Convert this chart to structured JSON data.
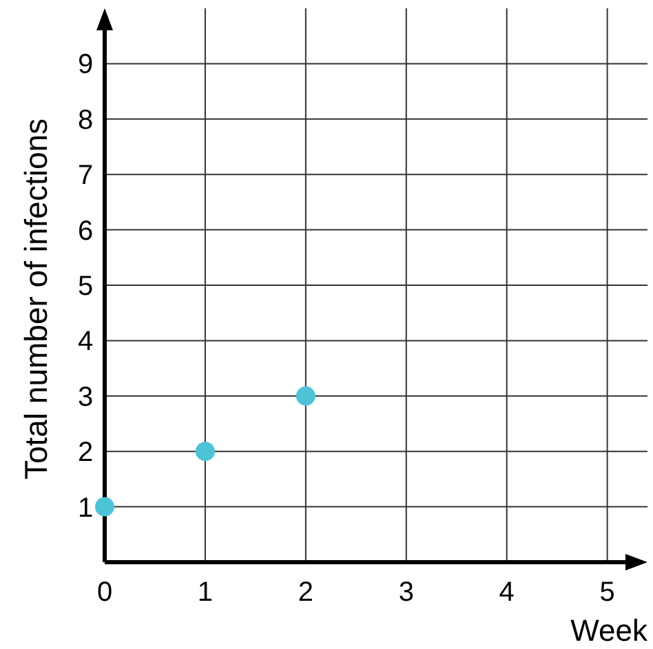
{
  "chart_data": {
    "type": "scatter",
    "xlabel": "Week",
    "ylabel": "Total number of infections",
    "x": [
      0,
      1,
      2
    ],
    "values": [
      1,
      2,
      3
    ],
    "color": "#4ec3d6",
    "xlim": [
      0,
      5.4
    ],
    "ylim": [
      0,
      10
    ],
    "xticks": [
      0,
      1,
      2,
      3,
      4,
      5
    ],
    "yticks": [
      {
        "value": 0,
        "label": null
      },
      1,
      2,
      3,
      4,
      5,
      6,
      7,
      8,
      9
    ],
    "grid": true,
    "marker": "circle"
  }
}
